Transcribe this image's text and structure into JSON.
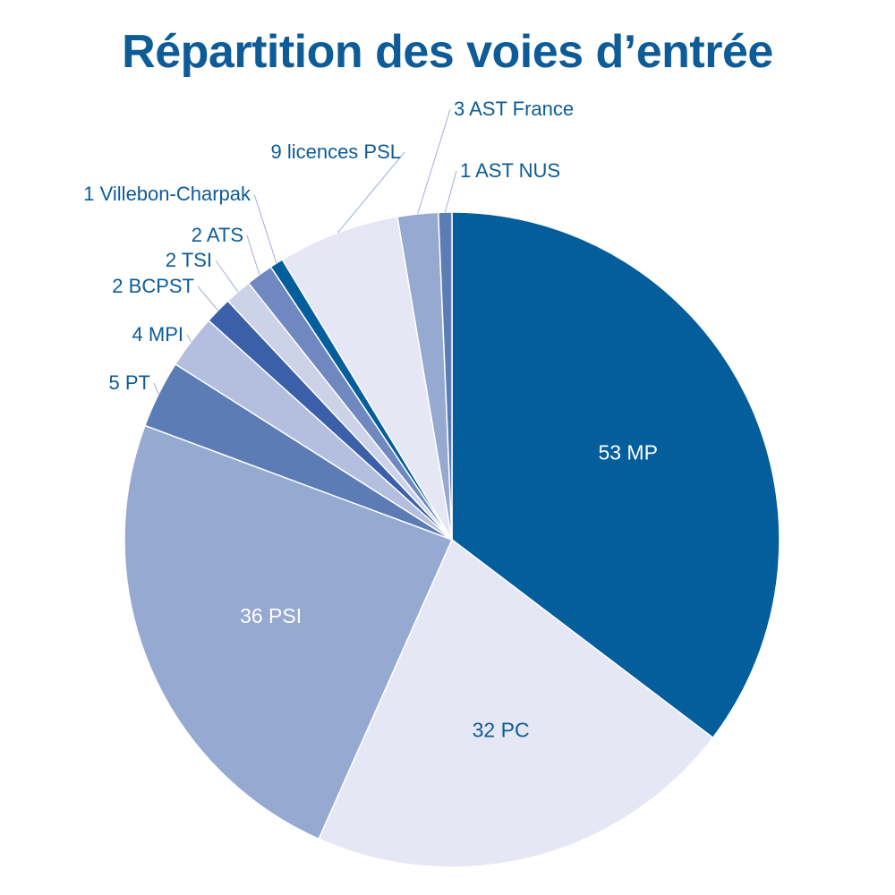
{
  "chart_data": {
    "type": "pie",
    "title": "Répartition des voies d’entrée",
    "slices": [
      {
        "label": "53 MP",
        "value": 53,
        "color": "#045e9c",
        "label_color": "#ffffff",
        "placement": "inside"
      },
      {
        "label": "32 PC",
        "value": 32,
        "color": "#e6e7f4",
        "label_color": "#0d5b97",
        "placement": "inside"
      },
      {
        "label": "36 PSI",
        "value": 36,
        "color": "#96a9d0",
        "label_color": "#ffffff",
        "placement": "inside"
      },
      {
        "label": "5 PT",
        "value": 5,
        "color": "#5b7cb5",
        "label_color": "#0d5b97",
        "placement": "outside"
      },
      {
        "label": "4 MPI",
        "value": 4,
        "color": "#b4bedf",
        "label_color": "#0d5b97",
        "placement": "outside"
      },
      {
        "label": "2 BCPST",
        "value": 2,
        "color": "#3b5fa8",
        "label_color": "#0d5b97",
        "placement": "outside"
      },
      {
        "label": "2 TSI",
        "value": 2,
        "color": "#ccd3e9",
        "label_color": "#0d5b97",
        "placement": "outside"
      },
      {
        "label": "2 ATS",
        "value": 2,
        "color": "#6f88bf",
        "label_color": "#0d5b97",
        "placement": "outside"
      },
      {
        "label": "1 Villebon-Charpak",
        "value": 1,
        "color": "#045e9c",
        "label_color": "#0d5b97",
        "placement": "outside"
      },
      {
        "label": "9 licences PSL",
        "value": 9,
        "color": "#e6e7f4",
        "label_color": "#0d5b97",
        "placement": "outside"
      },
      {
        "label": "3 AST France",
        "value": 3,
        "color": "#96a9d0",
        "label_color": "#0d5b97",
        "placement": "outside"
      },
      {
        "label": "1 AST NUS",
        "value": 1,
        "color": "#5b7cb5",
        "label_color": "#0d5b97",
        "placement": "outside"
      }
    ],
    "start_angle_deg": 0,
    "direction": "clockwise",
    "slice_border": "#ffffff",
    "title_color": "#0d5b97"
  }
}
